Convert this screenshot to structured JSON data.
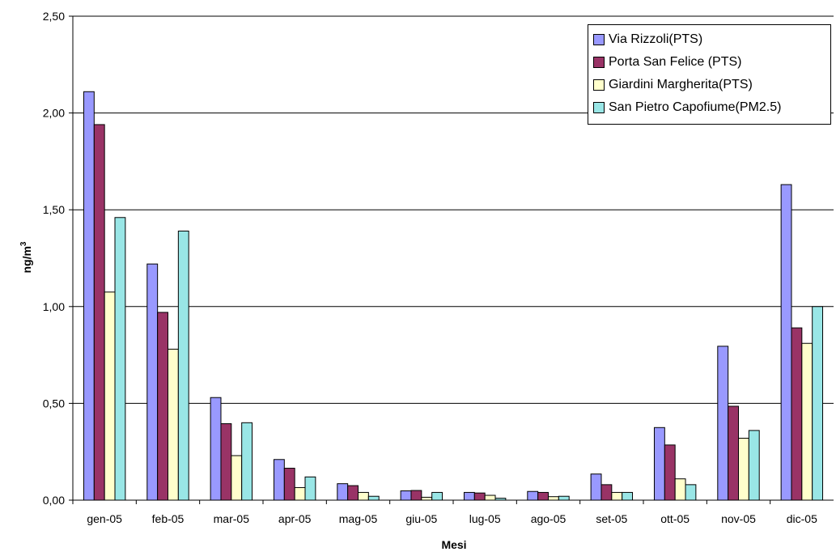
{
  "chart_data": {
    "type": "bar",
    "title": "",
    "xlabel": "Mesi",
    "ylabel": "ng/m",
    "ylabel_superscript": "3",
    "categories": [
      "gen-05",
      "feb-05",
      "mar-05",
      "apr-05",
      "mag-05",
      "giu-05",
      "lug-05",
      "ago-05",
      "set-05",
      "ott-05",
      "nov-05",
      "dic-05"
    ],
    "ylim": [
      0,
      2.5
    ],
    "yticks": [
      0,
      0.5,
      1.0,
      1.5,
      2.0,
      2.5
    ],
    "ytick_labels": [
      "0,00",
      "0,50",
      "1,00",
      "1,50",
      "2,00",
      "2,50"
    ],
    "grid": true,
    "legend_position": "top-right",
    "series": [
      {
        "name": "Via Rizzoli(PTS)",
        "color": "#9999ff",
        "values": [
          2.11,
          1.22,
          0.53,
          0.21,
          0.085,
          0.048,
          0.04,
          0.045,
          0.135,
          0.375,
          0.795,
          1.63
        ]
      },
      {
        "name": "Porta San Felice (PTS)",
        "color": "#993366",
        "values": [
          1.94,
          0.97,
          0.395,
          0.165,
          0.075,
          0.05,
          0.037,
          0.04,
          0.08,
          0.285,
          0.485,
          0.89
        ]
      },
      {
        "name": "Giardini Margherita(PTS)",
        "color": "#ffffcc",
        "values": [
          1.075,
          0.78,
          0.23,
          0.065,
          0.04,
          0.015,
          0.025,
          0.018,
          0.04,
          0.11,
          0.32,
          0.81
        ]
      },
      {
        "name": "San Pietro Capofiume(PM2.5)",
        "color": "#99e6e6",
        "values": [
          1.46,
          1.39,
          0.4,
          0.12,
          0.02,
          0.04,
          0.01,
          0.02,
          0.04,
          0.08,
          0.36,
          1.0
        ]
      }
    ]
  }
}
